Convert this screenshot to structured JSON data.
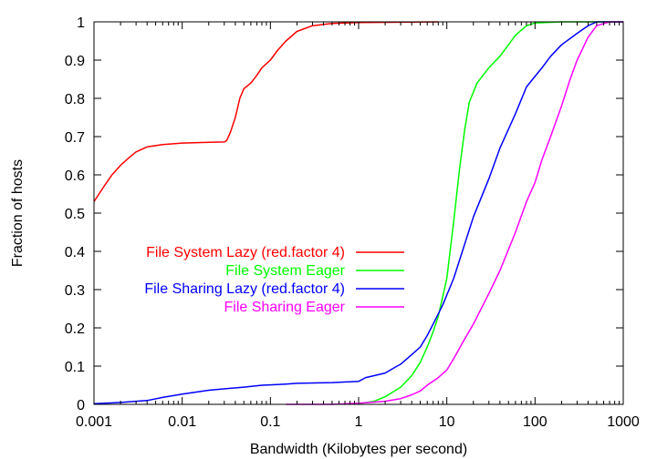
{
  "chart_data": {
    "type": "line",
    "title": "",
    "xlabel": "Bandwidth (Kilobytes per second)",
    "ylabel": "Fraction of hosts",
    "x_scale": "log",
    "xlim": [
      0.001,
      1000
    ],
    "ylim": [
      0,
      1
    ],
    "grid": false,
    "legend_position": "center-left",
    "x_ticks": [
      {
        "value": 0.001,
        "label": "0.001"
      },
      {
        "value": 0.01,
        "label": "0.01"
      },
      {
        "value": 0.1,
        "label": "0.1"
      },
      {
        "value": 1,
        "label": "1"
      },
      {
        "value": 10,
        "label": "10"
      },
      {
        "value": 100,
        "label": "100"
      },
      {
        "value": 1000,
        "label": "1000"
      }
    ],
    "y_ticks": [
      {
        "value": 0,
        "label": "0"
      },
      {
        "value": 0.1,
        "label": "0.1"
      },
      {
        "value": 0.2,
        "label": "0.2"
      },
      {
        "value": 0.3,
        "label": "0.3"
      },
      {
        "value": 0.4,
        "label": "0.4"
      },
      {
        "value": 0.5,
        "label": "0.5"
      },
      {
        "value": 0.6,
        "label": "0.6"
      },
      {
        "value": 0.7,
        "label": "0.7"
      },
      {
        "value": 0.8,
        "label": "0.8"
      },
      {
        "value": 0.9,
        "label": "0.9"
      },
      {
        "value": 1,
        "label": "1"
      }
    ],
    "series": [
      {
        "name": "File System Lazy (red.factor 4)",
        "color": "#ff0000",
        "points": [
          [
            0.001,
            0.53
          ],
          [
            0.0013,
            0.57
          ],
          [
            0.0016,
            0.6
          ],
          [
            0.002,
            0.625
          ],
          [
            0.0025,
            0.645
          ],
          [
            0.003,
            0.66
          ],
          [
            0.004,
            0.673
          ],
          [
            0.006,
            0.679
          ],
          [
            0.01,
            0.683
          ],
          [
            0.02,
            0.685
          ],
          [
            0.03,
            0.686
          ],
          [
            0.032,
            0.69
          ],
          [
            0.035,
            0.71
          ],
          [
            0.04,
            0.75
          ],
          [
            0.045,
            0.8
          ],
          [
            0.05,
            0.825
          ],
          [
            0.06,
            0.84
          ],
          [
            0.07,
            0.86
          ],
          [
            0.08,
            0.88
          ],
          [
            0.1,
            0.9
          ],
          [
            0.12,
            0.925
          ],
          [
            0.15,
            0.95
          ],
          [
            0.2,
            0.975
          ],
          [
            0.3,
            0.99
          ],
          [
            0.5,
            0.996
          ],
          [
            1,
            0.998
          ],
          [
            3,
            0.999
          ],
          [
            8,
            1.0
          ]
        ]
      },
      {
        "name": "File System Eager",
        "color": "#00ff00",
        "points": [
          [
            1,
            0.002
          ],
          [
            1.5,
            0.008
          ],
          [
            2,
            0.02
          ],
          [
            3,
            0.045
          ],
          [
            4,
            0.075
          ],
          [
            5,
            0.11
          ],
          [
            6,
            0.15
          ],
          [
            7,
            0.19
          ],
          [
            8,
            0.23
          ],
          [
            10,
            0.33
          ],
          [
            12,
            0.48
          ],
          [
            14,
            0.62
          ],
          [
            16,
            0.72
          ],
          [
            18,
            0.79
          ],
          [
            22,
            0.84
          ],
          [
            30,
            0.88
          ],
          [
            40,
            0.91
          ],
          [
            50,
            0.94
          ],
          [
            60,
            0.965
          ],
          [
            80,
            0.99
          ],
          [
            100,
            0.997
          ],
          [
            200,
            1.0
          ],
          [
            1000,
            1.0
          ]
        ]
      },
      {
        "name": "File Sharing Lazy (red.factor 4)",
        "color": "#0000ff",
        "points": [
          [
            0.001,
            0.002
          ],
          [
            0.002,
            0.005
          ],
          [
            0.004,
            0.01
          ],
          [
            0.006,
            0.018
          ],
          [
            0.01,
            0.027
          ],
          [
            0.02,
            0.037
          ],
          [
            0.05,
            0.045
          ],
          [
            0.08,
            0.05
          ],
          [
            0.1,
            0.051
          ],
          [
            0.15,
            0.053
          ],
          [
            0.2,
            0.055
          ],
          [
            0.5,
            0.057
          ],
          [
            1,
            0.06
          ],
          [
            1.2,
            0.07
          ],
          [
            1.5,
            0.075
          ],
          [
            2,
            0.082
          ],
          [
            2.5,
            0.095
          ],
          [
            3,
            0.105
          ],
          [
            4,
            0.13
          ],
          [
            5,
            0.15
          ],
          [
            6,
            0.18
          ],
          [
            7,
            0.21
          ],
          [
            9,
            0.26
          ],
          [
            12,
            0.33
          ],
          [
            15,
            0.4
          ],
          [
            20,
            0.49
          ],
          [
            30,
            0.59
          ],
          [
            40,
            0.67
          ],
          [
            60,
            0.76
          ],
          [
            80,
            0.83
          ],
          [
            120,
            0.88
          ],
          [
            150,
            0.91
          ],
          [
            200,
            0.94
          ],
          [
            300,
            0.97
          ],
          [
            400,
            0.99
          ],
          [
            500,
            1.0
          ],
          [
            1000,
            1.0
          ]
        ]
      },
      {
        "name": "File Sharing Eager",
        "color": "#ff00ff",
        "points": [
          [
            0.15,
            0.0
          ],
          [
            0.5,
            0.0
          ],
          [
            1,
            0.003
          ],
          [
            2,
            0.008
          ],
          [
            3,
            0.015
          ],
          [
            4,
            0.025
          ],
          [
            5,
            0.035
          ],
          [
            6,
            0.05
          ],
          [
            8,
            0.07
          ],
          [
            10,
            0.09
          ],
          [
            12,
            0.12
          ],
          [
            15,
            0.16
          ],
          [
            20,
            0.21
          ],
          [
            30,
            0.29
          ],
          [
            40,
            0.35
          ],
          [
            60,
            0.45
          ],
          [
            80,
            0.53
          ],
          [
            100,
            0.58
          ],
          [
            120,
            0.64
          ],
          [
            150,
            0.7
          ],
          [
            200,
            0.78
          ],
          [
            250,
            0.85
          ],
          [
            300,
            0.9
          ],
          [
            400,
            0.96
          ],
          [
            500,
            0.99
          ],
          [
            700,
            1.0
          ],
          [
            1000,
            1.0
          ]
        ]
      }
    ]
  }
}
